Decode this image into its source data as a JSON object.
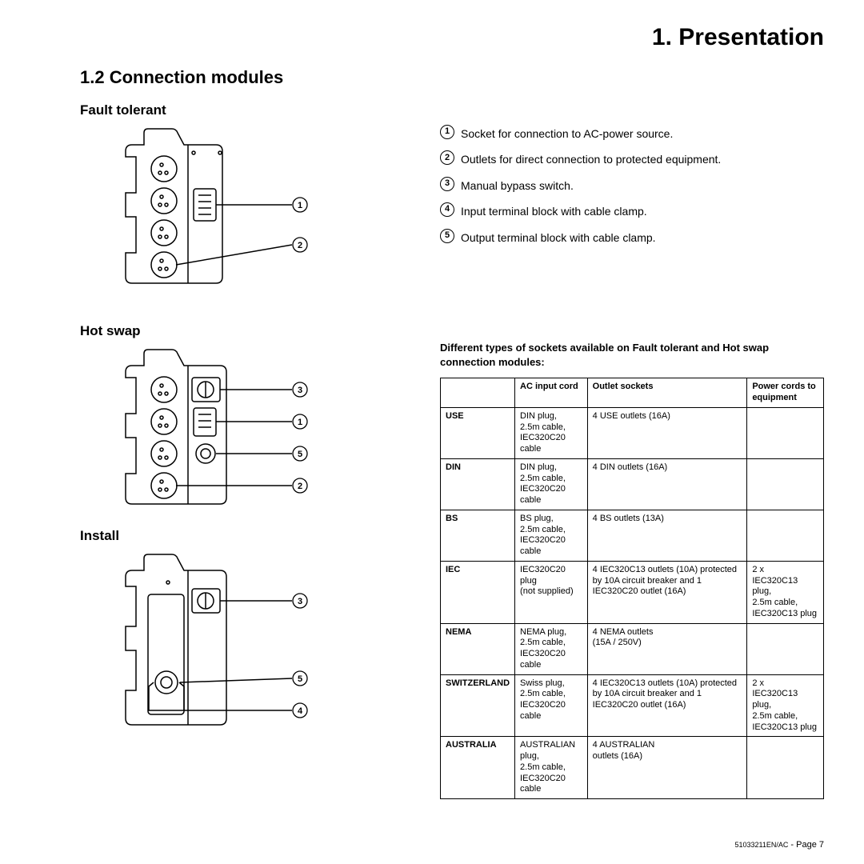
{
  "chapter": "1. Presentation",
  "section": "1.2 Connection modules",
  "sub1": "Fault tolerant",
  "sub2": "Hot swap",
  "sub3": "Install",
  "callouts": {
    "c1": "Socket for connection to AC-power source.",
    "c2": "Outlets for direct connection to protected equipment.",
    "c3": "Manual bypass switch.",
    "c4": "Input terminal block with cable clamp.",
    "c5": "Output terminal block with cable clamp."
  },
  "table_caption": "Different types of sockets available on Fault tolerant and Hot swap connection modules:",
  "table": {
    "headers": [
      "",
      "AC input cord",
      "Outlet sockets",
      "Power cords to equipment"
    ],
    "rows": [
      [
        "USE",
        "DIN plug,\n2.5m cable,\nIEC320C20 cable",
        "4 USE outlets (16A)",
        ""
      ],
      [
        "DIN",
        "DIN plug,\n2.5m cable,\nIEC320C20 cable",
        "4 DIN outlets (16A)",
        ""
      ],
      [
        "BS",
        "BS plug,\n2.5m cable,\nIEC320C20 cable",
        "4 BS outlets (13A)",
        ""
      ],
      [
        "IEC",
        "IEC320C20 plug\n(not supplied)",
        "4 IEC320C13 outlets (10A) protected by 10A circuit breaker and 1 IEC320C20 outlet (16A)",
        "2 x\nIEC320C13 plug,\n2.5m cable,\nIEC320C13 plug"
      ],
      [
        "NEMA",
        "NEMA plug,\n2.5m cable,\nIEC320C20 cable",
        "4 NEMA outlets\n(15A / 250V)",
        ""
      ],
      [
        "SWITZERLAND",
        "Swiss plug,\n2.5m cable,\nIEC320C20 cable",
        "4 IEC320C13 outlets (10A) protected by 10A circuit breaker and 1 IEC320C20 outlet (16A)",
        "2 x\nIEC320C13 plug,\n2.5m cable,\nIEC320C13 plug"
      ],
      [
        "AUSTRALIA",
        "AUSTRALIAN plug,\n2.5m cable,\nIEC320C20 cable",
        "4 AUSTRALIAN\noutlets (16A)",
        ""
      ]
    ]
  },
  "footer_doc": "51033211EN/AC",
  "footer_page": " - Page 7"
}
